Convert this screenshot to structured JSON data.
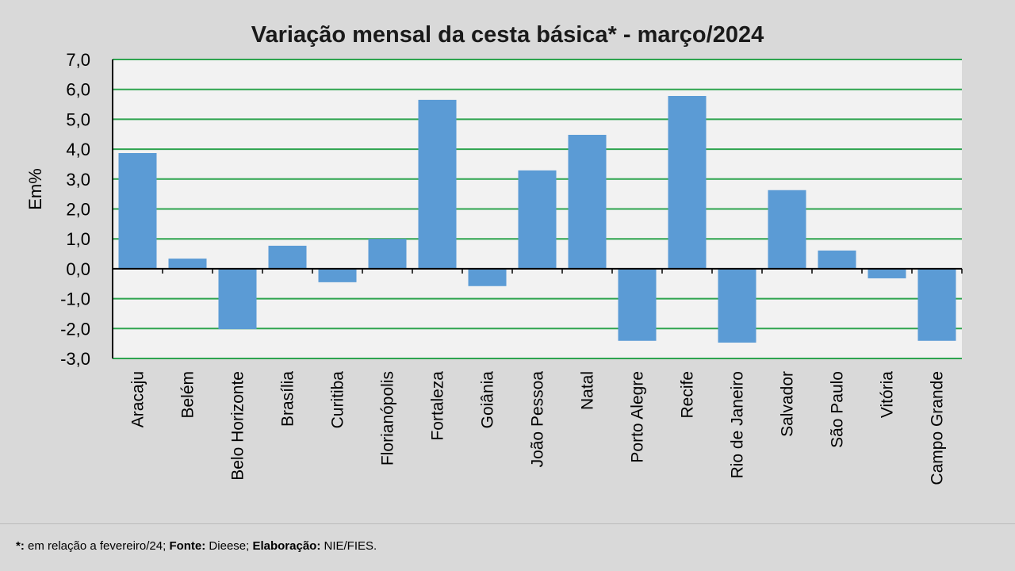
{
  "chart_data": {
    "type": "bar",
    "title": "Variação  mensal da cesta básica* - março/2024",
    "xlabel": "",
    "ylabel": "Em%",
    "ylim": [
      -3,
      7
    ],
    "yticks": [
      "7,0",
      "6,0",
      "5,0",
      "4,0",
      "3,0",
      "2,0",
      "1,0",
      "0,0",
      "-1,0",
      "-2,0",
      "-3,0"
    ],
    "grid": true,
    "categories": [
      "Aracaju",
      "Belém",
      "Belo Horizonte",
      "Brasília",
      "Curitiba",
      "Florianópolis",
      "Fortaleza",
      "Goiânia",
      "João Pessoa",
      "Natal",
      "Porto Alegre",
      "Recife",
      "Rio de Janeiro",
      "Salvador",
      "São Paulo",
      "Vitória",
      "Campo Grande"
    ],
    "values": [
      3.87,
      0.34,
      -2.02,
      0.77,
      -0.45,
      1.0,
      5.65,
      -0.58,
      3.29,
      4.48,
      -2.41,
      5.78,
      -2.47,
      2.63,
      0.61,
      -0.32,
      -2.41
    ],
    "colors": {
      "bar": "#5b9bd5",
      "grid": "#2ea44f",
      "plot_bg": "#f2f2f2"
    }
  },
  "footnote": {
    "mark": "*:",
    "text1": " em relação a fevereiro/24; ",
    "fonte_label": "Fonte:",
    "fonte": " Dieese; ",
    "elab_label": "Elaboração:",
    "elab": " NIE/FIES."
  }
}
